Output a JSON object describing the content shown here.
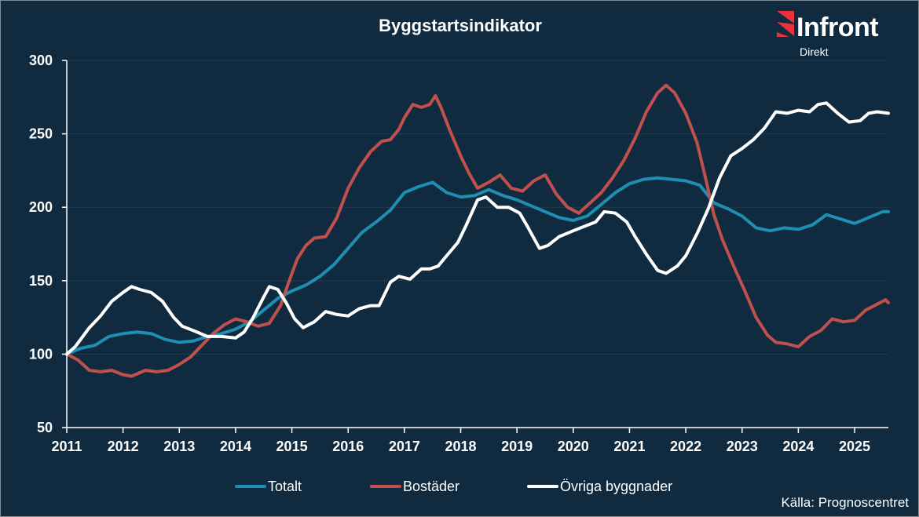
{
  "logo": {
    "name": "Infront",
    "subtitle": "Direkt",
    "mark_color": "#e8323c"
  },
  "source": "Källa: Prognoscentret",
  "colors": {
    "background": "#102b3f",
    "axis": "#ffffff",
    "grid": "#223a4e"
  },
  "chart_data": {
    "type": "line",
    "title": "Byggstartsindikator",
    "xlabel": "",
    "ylabel": "",
    "xlim": [
      2011,
      2025.6
    ],
    "ylim": [
      50,
      300
    ],
    "yticks": [
      50,
      100,
      150,
      200,
      250,
      300
    ],
    "xticks": [
      2011,
      2012,
      2013,
      2014,
      2015,
      2016,
      2017,
      2018,
      2019,
      2020,
      2021,
      2022,
      2023,
      2024,
      2025
    ],
    "grid": "horizontal",
    "legend_position": "bottom",
    "series": [
      {
        "name": "Totalt",
        "color": "#1e8fb0",
        "points": [
          [
            2011.0,
            100
          ],
          [
            2011.25,
            104
          ],
          [
            2011.5,
            106
          ],
          [
            2011.75,
            112
          ],
          [
            2012.0,
            114
          ],
          [
            2012.25,
            115
          ],
          [
            2012.5,
            114
          ],
          [
            2012.75,
            110
          ],
          [
            2013.0,
            108
          ],
          [
            2013.25,
            109
          ],
          [
            2013.5,
            112
          ],
          [
            2013.75,
            114
          ],
          [
            2014.0,
            117
          ],
          [
            2014.25,
            122
          ],
          [
            2014.5,
            130
          ],
          [
            2014.75,
            138
          ],
          [
            2015.0,
            143
          ],
          [
            2015.25,
            147
          ],
          [
            2015.5,
            153
          ],
          [
            2015.75,
            161
          ],
          [
            2016.0,
            172
          ],
          [
            2016.25,
            183
          ],
          [
            2016.5,
            190
          ],
          [
            2016.75,
            198
          ],
          [
            2017.0,
            210
          ],
          [
            2017.25,
            214
          ],
          [
            2017.5,
            217
          ],
          [
            2017.75,
            210
          ],
          [
            2018.0,
            207
          ],
          [
            2018.25,
            208
          ],
          [
            2018.5,
            212
          ],
          [
            2018.75,
            208
          ],
          [
            2019.0,
            205
          ],
          [
            2019.25,
            201
          ],
          [
            2019.5,
            197
          ],
          [
            2019.75,
            193
          ],
          [
            2020.0,
            191
          ],
          [
            2020.25,
            194
          ],
          [
            2020.5,
            202
          ],
          [
            2020.75,
            210
          ],
          [
            2021.0,
            216
          ],
          [
            2021.25,
            219
          ],
          [
            2021.5,
            220
          ],
          [
            2021.75,
            219
          ],
          [
            2022.0,
            218
          ],
          [
            2022.25,
            215
          ],
          [
            2022.5,
            203
          ],
          [
            2022.75,
            199
          ],
          [
            2023.0,
            194
          ],
          [
            2023.25,
            186
          ],
          [
            2023.5,
            184
          ],
          [
            2023.75,
            186
          ],
          [
            2024.0,
            185
          ],
          [
            2024.25,
            188
          ],
          [
            2024.5,
            195
          ],
          [
            2024.75,
            192
          ],
          [
            2025.0,
            189
          ],
          [
            2025.25,
            193
          ],
          [
            2025.5,
            197
          ],
          [
            2025.6,
            197
          ]
        ]
      },
      {
        "name": "Bostäder",
        "color": "#c0504d",
        "points": [
          [
            2011.0,
            100
          ],
          [
            2011.2,
            96
          ],
          [
            2011.4,
            89
          ],
          [
            2011.6,
            88
          ],
          [
            2011.8,
            89
          ],
          [
            2012.0,
            86
          ],
          [
            2012.15,
            85
          ],
          [
            2012.4,
            89
          ],
          [
            2012.6,
            88
          ],
          [
            2012.8,
            89
          ],
          [
            2013.0,
            93
          ],
          [
            2013.2,
            98
          ],
          [
            2013.4,
            106
          ],
          [
            2013.6,
            114
          ],
          [
            2013.8,
            120
          ],
          [
            2014.0,
            124
          ],
          [
            2014.2,
            122
          ],
          [
            2014.4,
            119
          ],
          [
            2014.6,
            121
          ],
          [
            2014.8,
            133
          ],
          [
            2015.0,
            155
          ],
          [
            2015.1,
            165
          ],
          [
            2015.25,
            174
          ],
          [
            2015.4,
            179
          ],
          [
            2015.6,
            180
          ],
          [
            2015.8,
            193
          ],
          [
            2016.0,
            213
          ],
          [
            2016.2,
            227
          ],
          [
            2016.4,
            238
          ],
          [
            2016.6,
            245
          ],
          [
            2016.75,
            246
          ],
          [
            2016.9,
            253
          ],
          [
            2017.0,
            261
          ],
          [
            2017.15,
            270
          ],
          [
            2017.3,
            268
          ],
          [
            2017.45,
            270
          ],
          [
            2017.55,
            276
          ],
          [
            2017.65,
            268
          ],
          [
            2017.8,
            253
          ],
          [
            2018.0,
            235
          ],
          [
            2018.15,
            223
          ],
          [
            2018.3,
            213
          ],
          [
            2018.5,
            217
          ],
          [
            2018.7,
            222
          ],
          [
            2018.9,
            213
          ],
          [
            2019.1,
            211
          ],
          [
            2019.3,
            218
          ],
          [
            2019.5,
            222
          ],
          [
            2019.7,
            209
          ],
          [
            2019.9,
            200
          ],
          [
            2020.1,
            196
          ],
          [
            2020.3,
            203
          ],
          [
            2020.5,
            210
          ],
          [
            2020.7,
            220
          ],
          [
            2020.9,
            232
          ],
          [
            2021.1,
            247
          ],
          [
            2021.3,
            265
          ],
          [
            2021.5,
            278
          ],
          [
            2021.65,
            283
          ],
          [
            2021.8,
            278
          ],
          [
            2022.0,
            264
          ],
          [
            2022.2,
            244
          ],
          [
            2022.35,
            220
          ],
          [
            2022.5,
            195
          ],
          [
            2022.65,
            178
          ],
          [
            2022.85,
            160
          ],
          [
            2023.05,
            143
          ],
          [
            2023.25,
            125
          ],
          [
            2023.45,
            113
          ],
          [
            2023.6,
            108
          ],
          [
            2023.8,
            107
          ],
          [
            2024.0,
            105
          ],
          [
            2024.2,
            112
          ],
          [
            2024.4,
            116
          ],
          [
            2024.6,
            124
          ],
          [
            2024.8,
            122
          ],
          [
            2025.0,
            123
          ],
          [
            2025.2,
            130
          ],
          [
            2025.4,
            134
          ],
          [
            2025.55,
            137
          ],
          [
            2025.6,
            135
          ]
        ]
      },
      {
        "name": "Övriga byggnader",
        "color": "#ffffff",
        "points": [
          [
            2011.0,
            100
          ],
          [
            2011.15,
            105
          ],
          [
            2011.4,
            118
          ],
          [
            2011.6,
            126
          ],
          [
            2011.8,
            136
          ],
          [
            2012.0,
            142
          ],
          [
            2012.15,
            146
          ],
          [
            2012.3,
            144
          ],
          [
            2012.5,
            142
          ],
          [
            2012.7,
            136
          ],
          [
            2012.9,
            125
          ],
          [
            2013.05,
            119
          ],
          [
            2013.25,
            116
          ],
          [
            2013.5,
            112
          ],
          [
            2013.75,
            112
          ],
          [
            2014.0,
            111
          ],
          [
            2014.15,
            115
          ],
          [
            2014.3,
            124
          ],
          [
            2014.5,
            139
          ],
          [
            2014.6,
            146
          ],
          [
            2014.75,
            144
          ],
          [
            2014.9,
            135
          ],
          [
            2015.05,
            124
          ],
          [
            2015.2,
            118
          ],
          [
            2015.4,
            122
          ],
          [
            2015.6,
            129
          ],
          [
            2015.8,
            127
          ],
          [
            2016.0,
            126
          ],
          [
            2016.2,
            131
          ],
          [
            2016.4,
            133
          ],
          [
            2016.55,
            133
          ],
          [
            2016.75,
            149
          ],
          [
            2016.9,
            153
          ],
          [
            2017.1,
            151
          ],
          [
            2017.3,
            158
          ],
          [
            2017.45,
            158
          ],
          [
            2017.6,
            160
          ],
          [
            2017.75,
            167
          ],
          [
            2017.95,
            176
          ],
          [
            2018.1,
            188
          ],
          [
            2018.3,
            205
          ],
          [
            2018.45,
            207
          ],
          [
            2018.65,
            200
          ],
          [
            2018.85,
            200
          ],
          [
            2019.05,
            196
          ],
          [
            2019.2,
            186
          ],
          [
            2019.4,
            172
          ],
          [
            2019.55,
            174
          ],
          [
            2019.75,
            180
          ],
          [
            2020.0,
            184
          ],
          [
            2020.2,
            187
          ],
          [
            2020.4,
            190
          ],
          [
            2020.55,
            197
          ],
          [
            2020.75,
            196
          ],
          [
            2020.95,
            190
          ],
          [
            2021.1,
            180
          ],
          [
            2021.3,
            168
          ],
          [
            2021.5,
            157
          ],
          [
            2021.65,
            155
          ],
          [
            2021.85,
            160
          ],
          [
            2022.0,
            167
          ],
          [
            2022.2,
            182
          ],
          [
            2022.4,
            199
          ],
          [
            2022.6,
            220
          ],
          [
            2022.8,
            235
          ],
          [
            2023.0,
            240
          ],
          [
            2023.2,
            246
          ],
          [
            2023.4,
            254
          ],
          [
            2023.6,
            265
          ],
          [
            2023.8,
            264
          ],
          [
            2024.0,
            266
          ],
          [
            2024.2,
            265
          ],
          [
            2024.35,
            270
          ],
          [
            2024.5,
            271
          ],
          [
            2024.7,
            264
          ],
          [
            2024.9,
            258
          ],
          [
            2025.1,
            259
          ],
          [
            2025.25,
            264
          ],
          [
            2025.4,
            265
          ],
          [
            2025.6,
            264
          ]
        ]
      }
    ]
  }
}
